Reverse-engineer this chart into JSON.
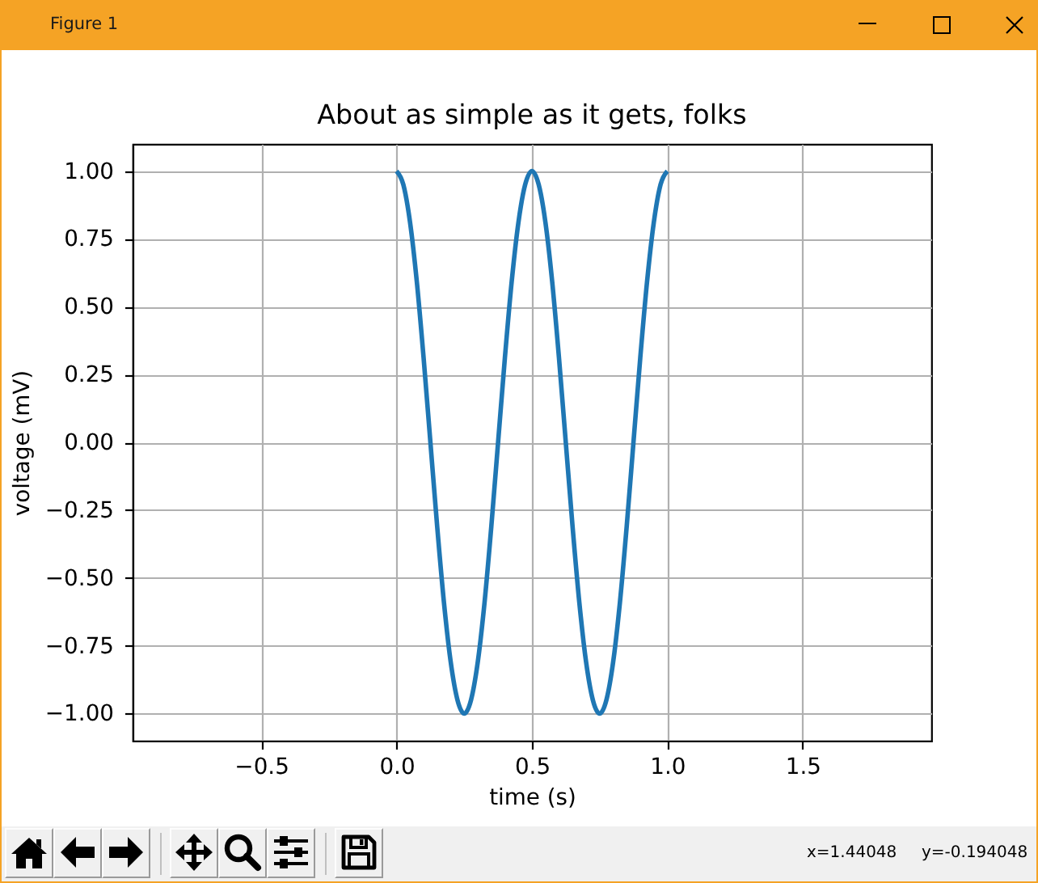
{
  "chart_data": {
    "type": "line",
    "title": "About as simple as it gets, folks",
    "xlabel": "time (s)",
    "ylabel": "voltage (mV)",
    "annotations": [
      "Figure 1",
      "x=1.44048",
      "y=-0.194048"
    ],
    "x": [
      0,
      0.025,
      0.05,
      0.075,
      0.1,
      0.125,
      0.15,
      0.175,
      0.2,
      0.225,
      0.25,
      0.275,
      0.3,
      0.325,
      0.35,
      0.375,
      0.4,
      0.425,
      0.45,
      0.475,
      0.5,
      0.525,
      0.55,
      0.575,
      0.6,
      0.625,
      0.65,
      0.675,
      0.7,
      0.725,
      0.75,
      0.775,
      0.8,
      0.825,
      0.85,
      0.875,
      0.9,
      0.925,
      0.95,
      0.975,
      1
    ],
    "series": [
      {
        "color": "#1f77b4",
        "values": [
          1,
          0.95,
          0.81,
          0.59,
          0.31,
          0,
          -0.31,
          -0.59,
          -0.81,
          -0.95,
          -1,
          -0.95,
          -0.81,
          -0.59,
          -0.31,
          0,
          0.31,
          0.59,
          0.81,
          0.95,
          1,
          0.95,
          0.81,
          0.59,
          0.31,
          0,
          -0.31,
          -0.59,
          -0.81,
          -0.95,
          -1,
          -0.95,
          -0.81,
          -0.59,
          -0.31,
          0,
          0.31,
          0.59,
          0.81,
          0.95,
          1
        ]
      }
    ],
    "xlim": [
      -0.975,
      1.975
    ],
    "ylim": [
      -1.1,
      1.1
    ],
    "xticks": [
      {
        "value": -0.5,
        "label": "−0.5"
      },
      {
        "value": 0,
        "label": "0.0"
      },
      0.5,
      {
        "value": 1,
        "label": "1.0"
      },
      1.5
    ],
    "yticks": [
      {
        "value": -1,
        "label": "−1.00"
      },
      {
        "value": -0.75,
        "label": "−0.75"
      },
      {
        "value": -0.5,
        "label": "−0.50"
      },
      {
        "value": -0.25,
        "label": "−0.25"
      },
      {
        "value": 0,
        "label": "0.00"
      },
      {
        "value": 0.25,
        "label": "0.25"
      },
      {
        "value": 0.5,
        "label": "0.50"
      },
      {
        "value": 0.75,
        "label": "0.75"
      },
      {
        "value": 1,
        "label": "1.00"
      }
    ],
    "grid": true,
    "line_style": "solid"
  }
}
